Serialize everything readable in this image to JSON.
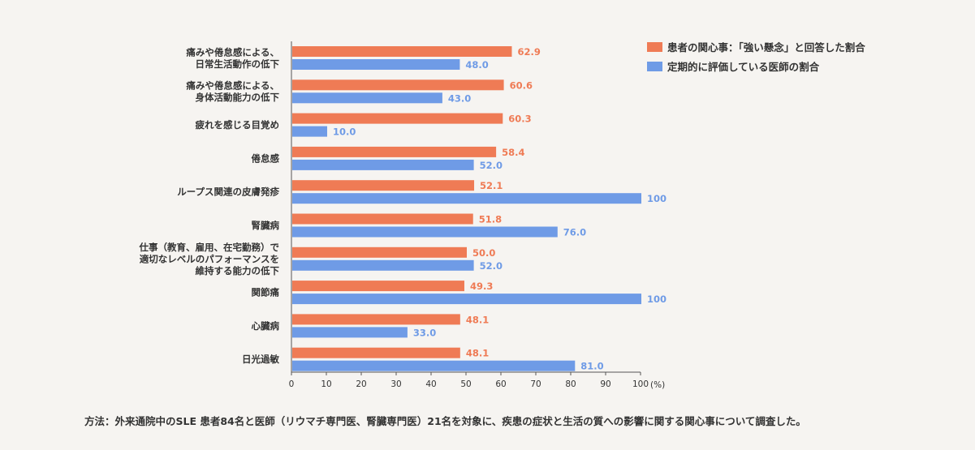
{
  "chart_data": {
    "type": "bar",
    "orientation": "horizontal",
    "categories": [
      [
        "痛みや倦怠感による、",
        "日常生活動作の低下"
      ],
      [
        "痛みや倦怠感による、",
        "身体活動能力の低下"
      ],
      [
        "疲れを感じる目覚め"
      ],
      [
        "倦怠感"
      ],
      [
        "ループス関連の皮膚発疹"
      ],
      [
        "腎臓病"
      ],
      [
        "仕事（教育、雇用、在宅勤務）で",
        "適切なレベルのパフォーマンスを",
        "維持する能力の低下"
      ],
      [
        "関節痛"
      ],
      [
        "心臓病"
      ],
      [
        "日光過敏"
      ]
    ],
    "series": [
      {
        "name": "患者の関心事：「強い懸念」と回答した割合",
        "color": "#ef7b55",
        "values": [
          62.9,
          60.6,
          60.3,
          58.4,
          52.1,
          51.8,
          50.0,
          49.3,
          48.1,
          48.1
        ],
        "labels": [
          "62.9",
          "60.6",
          "60.3",
          "58.4",
          "52.1",
          "51.8",
          "50.0",
          "49.3",
          "48.1",
          "48.1"
        ]
      },
      {
        "name": "定期的に評価している医師の割合",
        "color": "#6f9be6",
        "values": [
          48.0,
          43.0,
          10.0,
          52.0,
          100,
          76.0,
          52.0,
          100,
          33.0,
          81.0
        ],
        "labels": [
          "48.0",
          "43.0",
          "10.0",
          "52.0",
          "100",
          "76.0",
          "52.0",
          "100",
          "33.0",
          "81.0"
        ]
      }
    ],
    "xlim": [
      0,
      100
    ],
    "xticks": [
      "0",
      "10",
      "20",
      "30",
      "40",
      "50",
      "60",
      "70",
      "80",
      "90",
      "100"
    ],
    "xunit": "(%)",
    "grid": false,
    "legend_position": "top-right"
  },
  "footnote": "方法：外来通院中のSLE 患者84名と医師（リウマチ専門医、腎臓専門医）21名を対象に、疾患の症状と生活の質への影響に関する関心事について調査した。"
}
